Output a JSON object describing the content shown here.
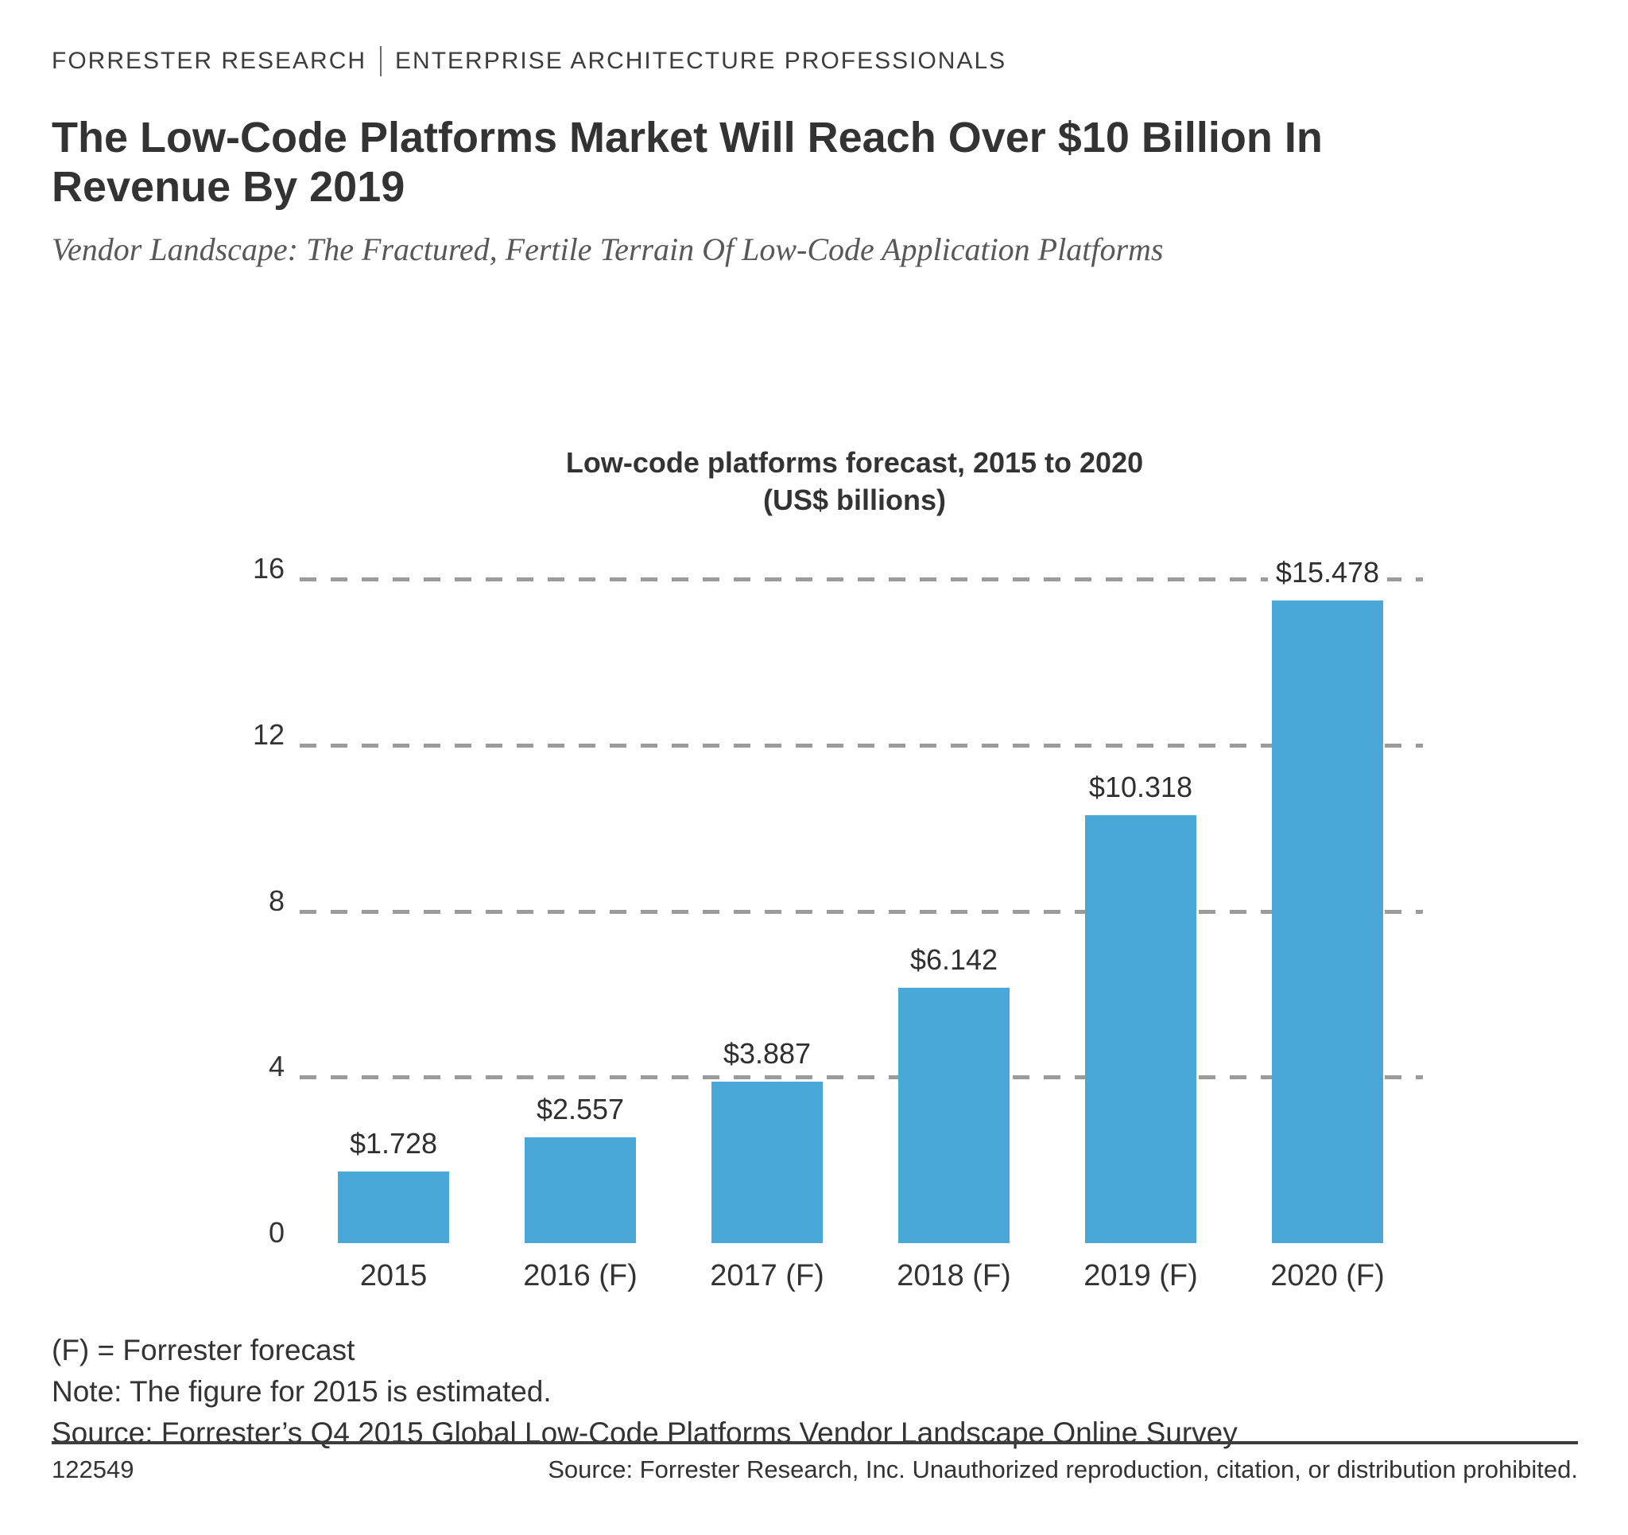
{
  "header": {
    "kicker_left": "FORRESTER RESEARCH",
    "kicker_right": "ENTERPRISE ARCHITECTURE PROFESSIONALS",
    "title_line1": "The Low-Code Platforms Market Will Reach Over $10 Billion In",
    "title_line2": "Revenue By 2019",
    "subtitle": "Vendor Landscape: The Fractured, Fertile Terrain Of Low-Code Application Platforms"
  },
  "chart_data": {
    "type": "bar",
    "title": "Low-code platforms forecast, 2015 to 2020",
    "subtitle": "(US$ billions)",
    "categories": [
      "2015",
      "2016 (F)",
      "2017 (F)",
      "2018 (F)",
      "2019 (F)",
      "2020 (F)"
    ],
    "values": [
      1.728,
      2.557,
      3.887,
      6.142,
      10.318,
      15.478
    ],
    "value_labels": [
      "$1.728",
      "$2.557",
      "$3.887",
      "$6.142",
      "$10.318",
      "$15.478"
    ],
    "ylim": [
      0,
      16
    ],
    "yticks": [
      0,
      4,
      8,
      12,
      16
    ],
    "ytick_labels": [
      "0",
      "4",
      "8",
      "12",
      "16"
    ],
    "xlabel": "",
    "ylabel": "",
    "grid": "horizontal-dashed",
    "legend_position": "none",
    "bar_color": "#4AA8D8",
    "gridline_color": "#9b9b9b"
  },
  "footnotes": {
    "forecast_key": "(F) = Forrester forecast",
    "note": "Note: The figure for 2015 is estimated.",
    "survey_source": "Source: Forrester’s Q4 2015 Global Low-Code Platforms Vendor Landscape Online Survey"
  },
  "footer": {
    "doc_id": "122549",
    "copyright": "Source: Forrester Research, Inc. Unauthorized reproduction, citation, or distribution prohibited."
  }
}
